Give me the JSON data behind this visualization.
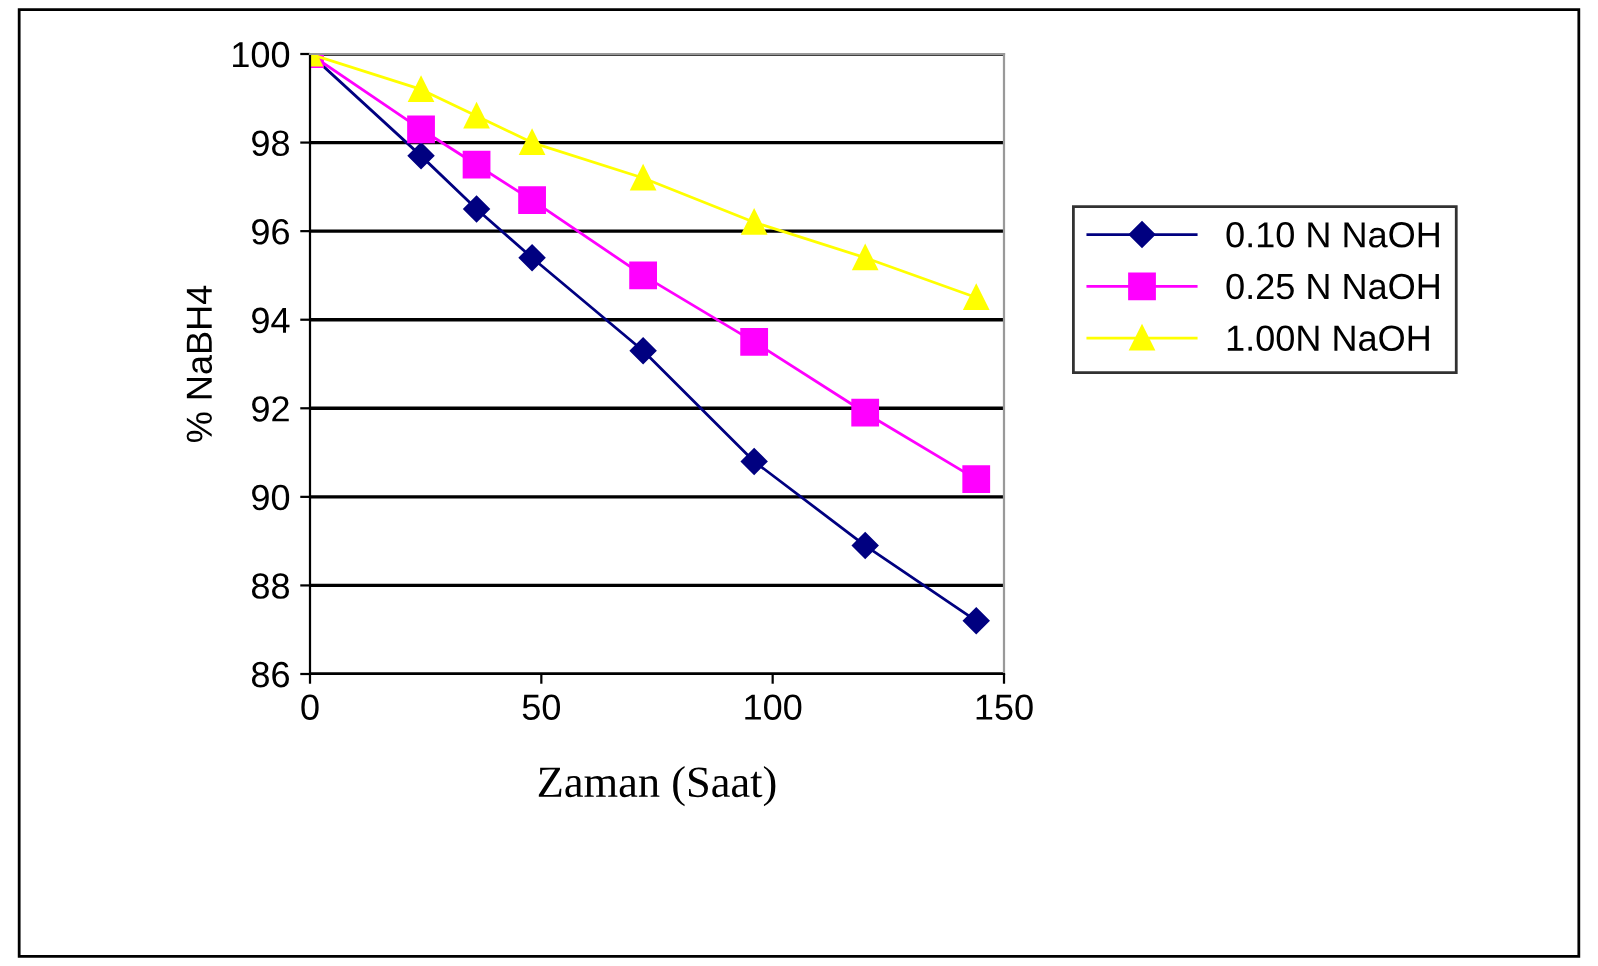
{
  "chart_data": {
    "type": "line",
    "xlabel": "Zaman (Saat)",
    "ylabel": "% NaBH4",
    "x": [
      0,
      24,
      36,
      48,
      72,
      96,
      120,
      144
    ],
    "series": [
      {
        "name": "0.10 N NaOH",
        "color": "#000080",
        "marker": "diamond",
        "values": [
          100,
          97.7,
          96.5,
          95.4,
          93.3,
          90.8,
          88.9,
          87.2
        ]
      },
      {
        "name": "0.25 N NaOH",
        "color": "#ff00ff",
        "marker": "square",
        "values": [
          100,
          98.3,
          97.5,
          96.7,
          95.0,
          93.5,
          91.9,
          90.4
        ]
      },
      {
        "name": "1.00N NaOH",
        "color": "#ffff00",
        "marker": "triangle",
        "values": [
          100,
          99.2,
          98.6,
          98.0,
          97.2,
          96.2,
          95.4,
          94.5
        ]
      }
    ],
    "xlim": [
      0,
      150
    ],
    "xticks": [
      0,
      50,
      100,
      150
    ],
    "ylim": [
      86,
      100
    ],
    "yticks": [
      86,
      88,
      90,
      92,
      94,
      96,
      98,
      100
    ],
    "grid": "y",
    "legend": "right",
    "line_style": "solid"
  }
}
